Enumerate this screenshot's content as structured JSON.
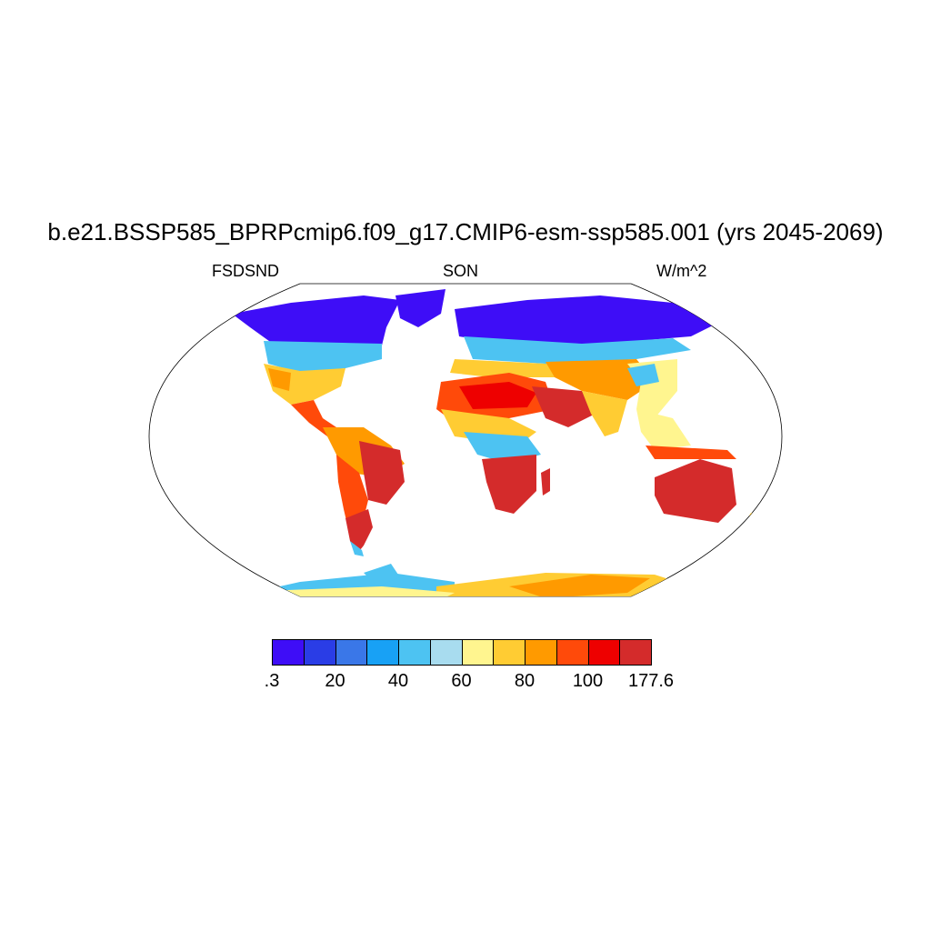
{
  "title": "b.e21.BSSP585_BPRPcmip6.f09_g17.CMIP6-esm-ssp585.001 (yrs 2045-2069)",
  "left_label": "FSDSND",
  "center_label": "SON",
  "right_label": "W/m^2",
  "colorbar": {
    "colors": [
      "#3e0df7",
      "#2a3de6",
      "#3a77e8",
      "#18a1f5",
      "#4dc3f2",
      "#a8dcef",
      "#fff58f",
      "#ffcc33",
      "#ff9a00",
      "#ff4a0a",
      "#ee0000",
      "#d42b2b"
    ],
    "labels": [
      ".3",
      "20",
      "40",
      "60",
      "80",
      "100",
      "177.6"
    ]
  },
  "colors": {
    "land_outline": "#000000",
    "background": "#ffffff"
  }
}
